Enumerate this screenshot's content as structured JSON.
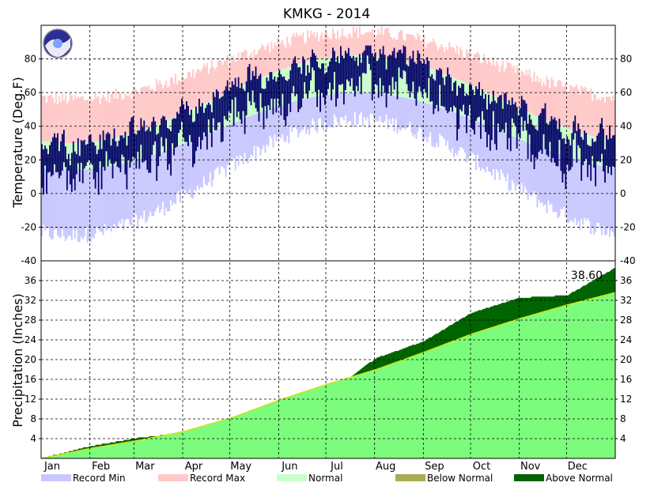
{
  "chart_data": {
    "type": "area",
    "title": "KMKG - 2014",
    "months": [
      "Jan",
      "Feb",
      "Mar",
      "Apr",
      "May",
      "Jun",
      "Jul",
      "Aug",
      "Sep",
      "Oct",
      "Nov",
      "Dec"
    ],
    "temperature": {
      "ylabel": "Temperature (Deg.F)",
      "ylim": [
        -40,
        100
      ],
      "yticks": [
        -20,
        0,
        20,
        40,
        60,
        80
      ],
      "grid": true,
      "normal_high_range": [
        30,
        82
      ],
      "normal_low_range": [
        14,
        60
      ],
      "record_max_range": [
        56,
        96
      ],
      "record_min_range": [
        -25,
        44
      ],
      "observed_range": [
        -8,
        88
      ]
    },
    "precipitation": {
      "ylabel": "Precipitation (Inches)",
      "ylim": [
        0,
        40
      ],
      "yticks": [
        4,
        8,
        12,
        16,
        20,
        24,
        28,
        32,
        36,
        40
      ],
      "grid": true,
      "total_label": "38.60",
      "normal_annual_total": 33.6,
      "actual_cumulative_monthly": [
        2.4,
        4.1,
        5.2,
        7.0,
        9.8,
        13.2,
        20.3,
        23.7,
        29.5,
        32.5,
        33.0,
        38.6
      ],
      "normal_cumulative_monthly": [
        2.0,
        3.6,
        5.5,
        8.3,
        11.9,
        15.1,
        18.0,
        21.5,
        25.2,
        28.3,
        31.1,
        33.6
      ]
    },
    "legend": [
      {
        "label": "Record Min",
        "color": "#c8c8ff"
      },
      {
        "label": "Record Max",
        "color": "#ffc8c8"
      },
      {
        "label": "Normal",
        "color": "#c8ffc8"
      },
      {
        "label": "Below Normal",
        "color": "#aaaa55"
      },
      {
        "label": "Above Normal",
        "color": "#006400"
      }
    ],
    "colors": {
      "observed": "#000066",
      "precip_normal": "#7cfc7c",
      "precip_above": "#006400",
      "normal_line": "#dddd00"
    }
  }
}
